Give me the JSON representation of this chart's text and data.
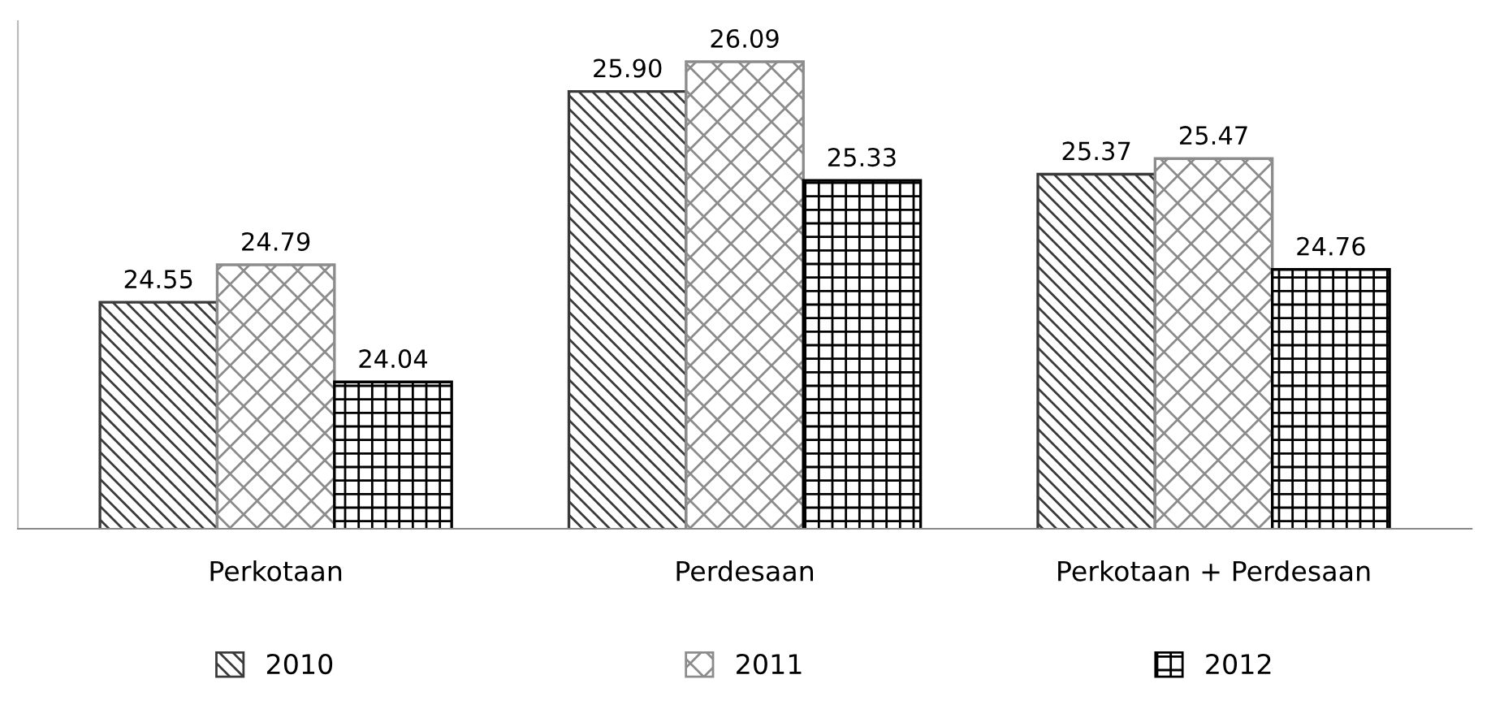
{
  "chart_data": {
    "type": "bar",
    "categories": [
      "Perkotaan",
      "Perdesaan",
      "Perkotaan + Perdesaan"
    ],
    "series": [
      {
        "name": "2010",
        "color": "#3a3a3a",
        "values": [
          24.55,
          25.9,
          25.37
        ],
        "value_labels": [
          "24.55",
          "25.90",
          "25.37"
        ]
      },
      {
        "name": "2011",
        "color": "#8c8c8c",
        "values": [
          24.79,
          26.09,
          25.47
        ],
        "value_labels": [
          "24.79",
          "26.09",
          "25.47"
        ]
      },
      {
        "name": "2012",
        "color": "#000000",
        "values": [
          24.04,
          25.33,
          24.76
        ],
        "value_labels": [
          "24.04",
          "25.33",
          "24.76"
        ]
      }
    ],
    "ylim": [
      23.1,
      26.35
    ],
    "data_labels": true,
    "grid": false,
    "legend": "bottom"
  }
}
